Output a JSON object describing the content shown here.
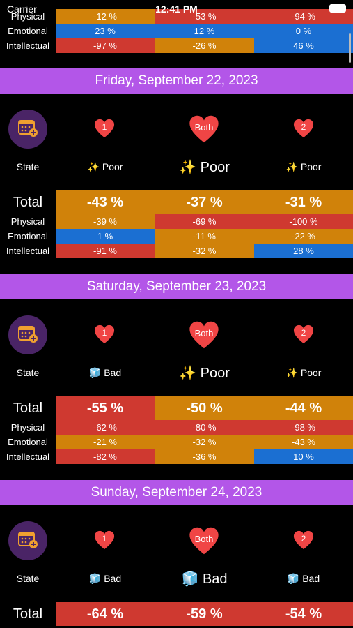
{
  "status_bar": {
    "carrier": "Carrier",
    "time": "12:41 PM"
  },
  "colors": {
    "orange": "#d0820a",
    "red": "#cf3930",
    "blue": "#1b6fd2",
    "purple_bar": "#b356e8",
    "heart": "#f04545"
  },
  "labels": {
    "state": "State",
    "total": "Total",
    "physical": "Physical",
    "emotional": "Emotional",
    "intellectual": "Intellectual"
  },
  "hearts": {
    "left": "1",
    "center": "Both",
    "right": "2"
  },
  "top_partial": {
    "physical": [
      "-12 %",
      "-53 %",
      "-94 %"
    ],
    "emotional": [
      "23 %",
      "12 %",
      "0 %"
    ],
    "intellectual": [
      "-97 %",
      "-26 %",
      "46 %"
    ]
  },
  "days": [
    {
      "date": "Friday, September 22, 2023",
      "states": [
        {
          "icon": "sparkles-icon",
          "text": "Poor"
        },
        {
          "icon": "sparkles-icon",
          "text": "Poor"
        },
        {
          "icon": "sparkles-icon",
          "text": "Poor"
        }
      ],
      "total": [
        "-43 %",
        "-37 %",
        "-31 %"
      ],
      "physical": [
        "-39 %",
        "-69 %",
        "-100 %"
      ],
      "emotional": [
        "1 %",
        "-11 %",
        "-22 %"
      ],
      "intellectual": [
        "-91 %",
        "-32 %",
        "28 %"
      ]
    },
    {
      "date": "Saturday, September 23, 2023",
      "states": [
        {
          "icon": "ice-cube-icon",
          "text": "Bad"
        },
        {
          "icon": "sparkles-icon",
          "text": "Poor"
        },
        {
          "icon": "sparkles-icon",
          "text": "Poor"
        }
      ],
      "total": [
        "-55 %",
        "-50 %",
        "-44 %"
      ],
      "physical": [
        "-62 %",
        "-80 %",
        "-98 %"
      ],
      "emotional": [
        "-21 %",
        "-32 %",
        "-43 %"
      ],
      "intellectual": [
        "-82 %",
        "-36 %",
        "10 %"
      ]
    },
    {
      "date": "Sunday, September 24, 2023",
      "states": [
        {
          "icon": "ice-cube-icon",
          "text": "Bad"
        },
        {
          "icon": "ice-cube-icon",
          "text": "Bad"
        },
        {
          "icon": "ice-cube-icon",
          "text": "Bad"
        }
      ],
      "total": [
        "-64 %",
        "-59 %",
        "-54 %"
      ]
    }
  ]
}
